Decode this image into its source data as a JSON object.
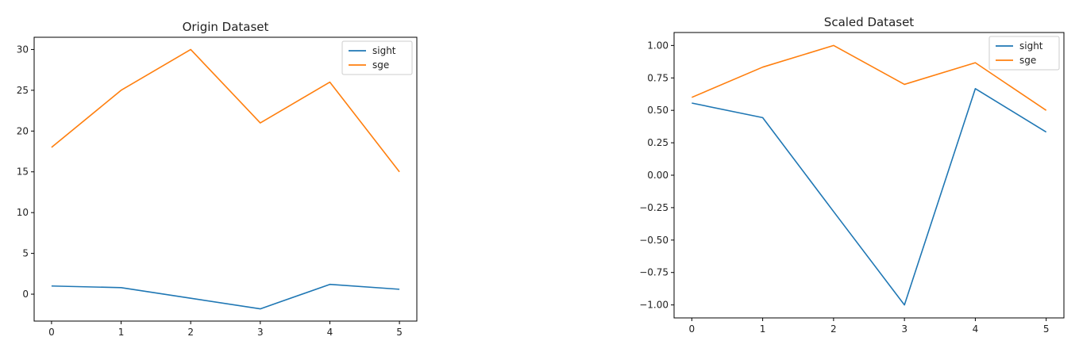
{
  "chart_data": [
    {
      "type": "line",
      "title": "Origin Dataset",
      "xlabel": "",
      "ylabel": "",
      "x": [
        0,
        1,
        2,
        3,
        4,
        5
      ],
      "xlim": [
        -0.25,
        5.25
      ],
      "ylim": [
        -3.3,
        31.5
      ],
      "xticks": [
        0,
        1,
        2,
        3,
        4,
        5
      ],
      "yticks": [
        0,
        5,
        10,
        15,
        20,
        25,
        30
      ],
      "grid": false,
      "legend": "top-right",
      "series": [
        {
          "name": "sight",
          "color": "#1f77b4",
          "values": [
            1.0,
            0.8,
            -0.5,
            -1.8,
            1.2,
            0.6
          ]
        },
        {
          "name": "sge",
          "color": "#ff7f0e",
          "values": [
            18,
            25,
            30,
            21,
            26,
            15
          ]
        }
      ]
    },
    {
      "type": "line",
      "title": "Scaled Dataset",
      "xlabel": "",
      "ylabel": "",
      "x": [
        0,
        1,
        2,
        3,
        4,
        5
      ],
      "xlim": [
        -0.25,
        5.25
      ],
      "ylim": [
        -1.1,
        1.1
      ],
      "xticks": [
        0,
        1,
        2,
        3,
        4,
        5
      ],
      "yticks": [
        -1.0,
        -0.75,
        -0.5,
        -0.25,
        0.0,
        0.25,
        0.5,
        0.75,
        1.0
      ],
      "grid": false,
      "legend": "top-right",
      "series": [
        {
          "name": "sight",
          "color": "#1f77b4",
          "values": [
            0.556,
            0.444,
            -0.28,
            -1.0,
            0.667,
            0.333
          ]
        },
        {
          "name": "sge",
          "color": "#ff7f0e",
          "values": [
            0.6,
            0.833,
            1.0,
            0.7,
            0.867,
            0.5
          ]
        }
      ]
    }
  ]
}
